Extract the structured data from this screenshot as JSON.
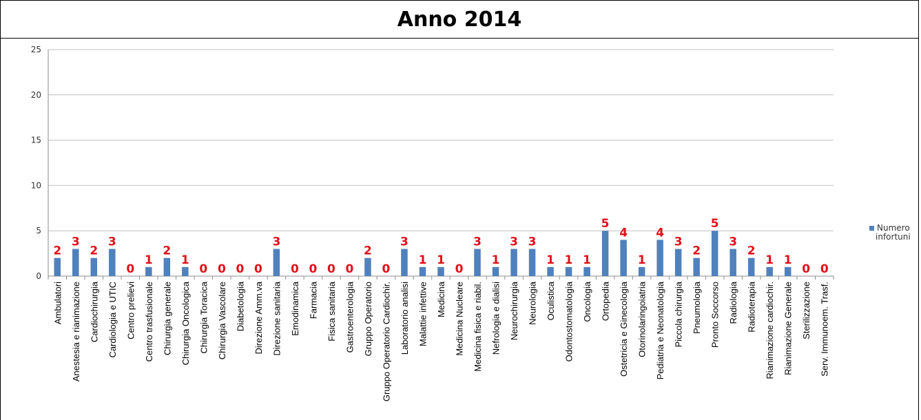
{
  "chart_data": {
    "type": "bar",
    "title": "Anno 2014",
    "ylim": [
      0,
      25
    ],
    "yticks": [
      0,
      5,
      10,
      15,
      20,
      25
    ],
    "grid": true,
    "legend_position": "right",
    "categories": [
      "Ambulatori",
      "Anestesia e rianimazione",
      "Cardiochirurgia",
      "Cardiologia e UTIC",
      "Centro prelievi",
      "Centro trasfusionale",
      "Chirurgia generale",
      "Chirurgia Oncologica",
      "Chirurgia Toracica",
      "Chirurgia Vascolare",
      "Diabetologia",
      "Direzione Amm.va",
      "Direzione sanitaria",
      "Emodinamica",
      "Farmacia",
      "Fisica sanitaria",
      "Gastroenterologia",
      "Gruppo Operatorio",
      "Gruppo Operatorio Cardiochir.",
      "Laboratorio analisi",
      "Malattie infettive",
      "Medicina",
      "Medicina Nucleare",
      "Medicina fisica e riabil.",
      "Nefrologia e dialisi",
      "Neurochirurgia",
      "Neurologia",
      "Oculistica",
      "Odontostomatologia",
      "Oncologia",
      "Ortopedia",
      "Ostetricia e Ginecologia",
      "Otorinolaringoiatria",
      "Pediatria e Neonatologia",
      "Piccola chirurgia",
      "Pneumologia",
      "Pronto Soccorso",
      "Radiologia",
      "Radioterapia",
      "Rianimazione cardiochir.",
      "Rianimazione Generale",
      "Sterilizzazione",
      "Serv. Immunoem. Trasf."
    ],
    "series": [
      {
        "name": "Numero infortuni",
        "color": "#4f81bd",
        "label_color": "#e0101a",
        "values": [
          2,
          3,
          2,
          3,
          0,
          1,
          2,
          1,
          0,
          0,
          0,
          0,
          3,
          0,
          0,
          0,
          0,
          2,
          0,
          3,
          1,
          1,
          0,
          3,
          1,
          3,
          3,
          1,
          1,
          1,
          5,
          4,
          1,
          4,
          3,
          2,
          5,
          3,
          2,
          1,
          1,
          0,
          0
        ]
      }
    ]
  }
}
